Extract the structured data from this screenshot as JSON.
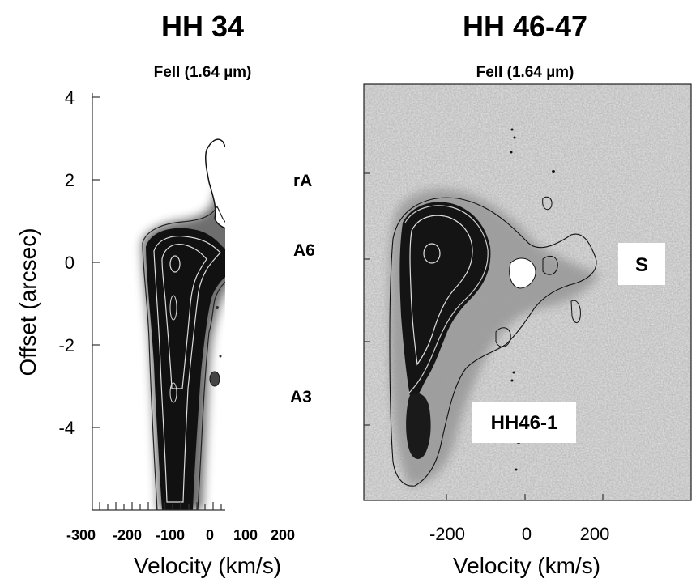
{
  "chart_data": [
    {
      "type": "heatmap",
      "title": "HH 34",
      "subtitle": "FeII (1.64 µm)",
      "xlabel": "Velocity (km/s)",
      "ylabel": "Offset (arcsec)",
      "xlim": [
        -300,
        300
      ],
      "ylim": [
        -5.9,
        4.0
      ],
      "xticks": [
        -300,
        -200,
        -100,
        0,
        100,
        200
      ],
      "xtick_labels": [
        "-300",
        "-200",
        "-100",
        "0",
        "100",
        "200"
      ],
      "yticks": [
        4,
        2,
        0,
        -2,
        -4
      ],
      "ytick_labels": [
        "4",
        "2",
        "0",
        "-2",
        "-4"
      ],
      "annotations": [
        {
          "text": "rA",
          "x": 230,
          "y": 1.9
        },
        {
          "text": "A6",
          "x": 230,
          "y": 0.35
        },
        {
          "text": "A3",
          "x": 225,
          "y": -3.2
        }
      ],
      "emission_peak": {
        "velocity": -90,
        "offset": 0.0
      },
      "grid": false
    },
    {
      "type": "heatmap",
      "title": "HH 46-47",
      "subtitle": "FeII (1.64 µm)",
      "xlabel": "Velocity (km/s)",
      "ylabel": "",
      "xlim": [
        -400,
        400
      ],
      "ylim": [
        -5.9,
        4.0
      ],
      "xticks": [
        -200,
        0,
        200
      ],
      "xtick_labels": [
        "-200",
        "0",
        "200"
      ],
      "annotations": [
        {
          "text": "S",
          "x": 290,
          "y": -0.1
        },
        {
          "text": "HH46-1",
          "x": -20,
          "y": -4.0
        }
      ],
      "emission_peak": {
        "velocity": -240,
        "offset": 0.1
      },
      "grid": false
    }
  ]
}
